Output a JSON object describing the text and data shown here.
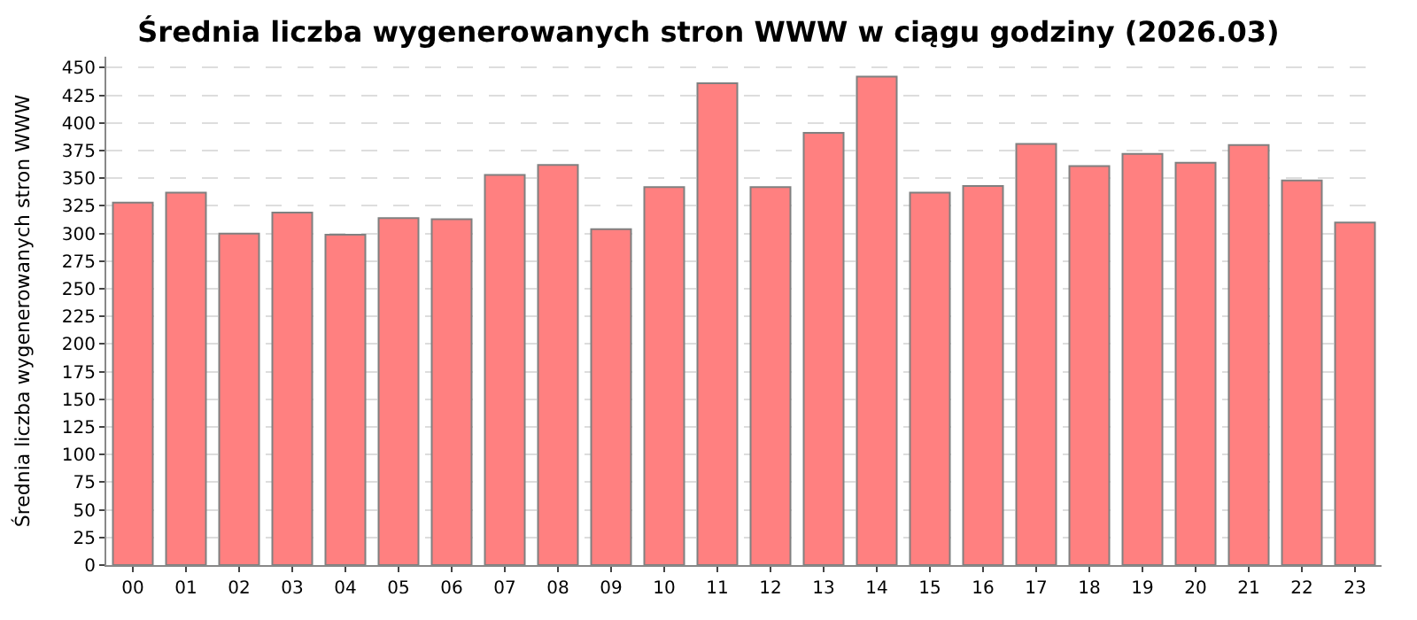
{
  "chart_data": {
    "type": "bar",
    "title": "Średnia liczba wygenerowanych stron WWW w ciągu godziny (2026.03)",
    "ylabel": "Średnia liczba wygenerowanych stron WWW",
    "categories": [
      "00",
      "01",
      "02",
      "03",
      "04",
      "05",
      "06",
      "07",
      "08",
      "09",
      "10",
      "11",
      "12",
      "13",
      "14",
      "15",
      "16",
      "17",
      "18",
      "19",
      "20",
      "21",
      "22",
      "23"
    ],
    "values": [
      328,
      337,
      300,
      319,
      299,
      314,
      313,
      353,
      362,
      304,
      342,
      436,
      342,
      391,
      442,
      337,
      343,
      381,
      361,
      372,
      364,
      380,
      348,
      310
    ],
    "color": "#ff8080",
    "ylim": [
      0,
      460
    ],
    "yticks": [
      0,
      25,
      50,
      75,
      100,
      125,
      150,
      175,
      200,
      225,
      250,
      275,
      300,
      325,
      350,
      375,
      400,
      425,
      450
    ],
    "grid": "y",
    "legend": false
  }
}
